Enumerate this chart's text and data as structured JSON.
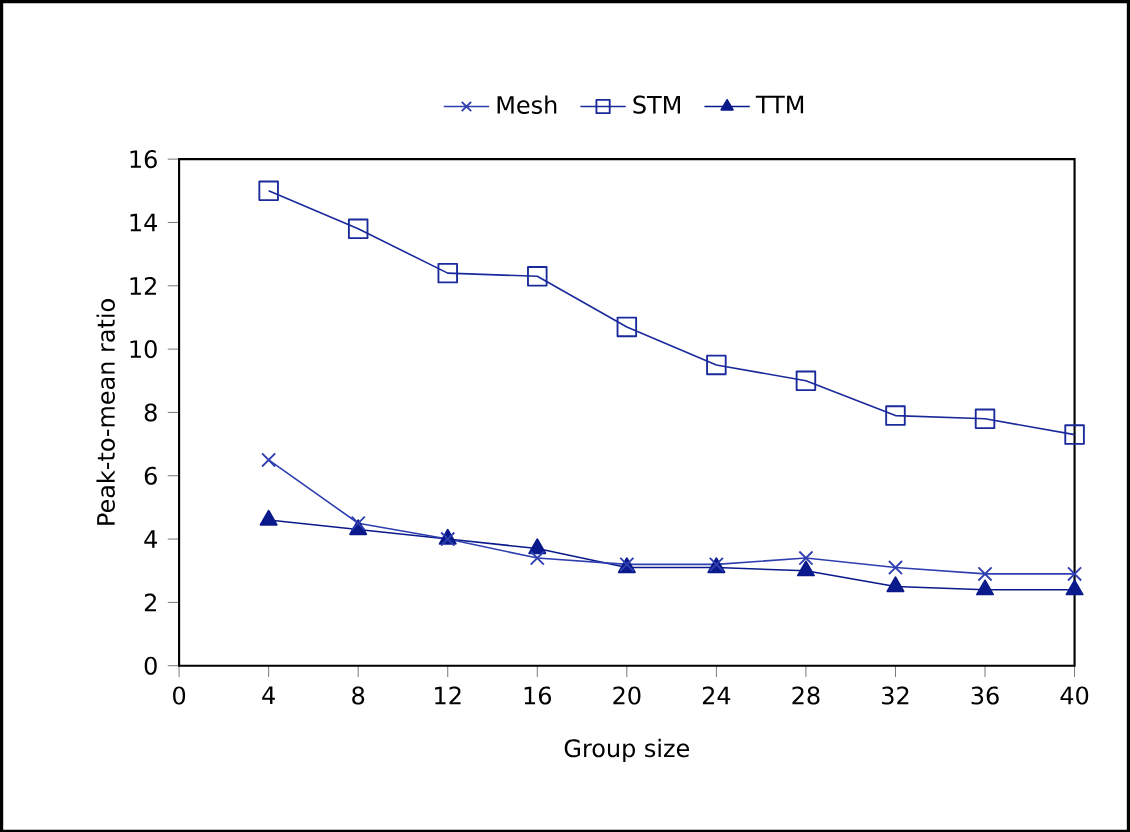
{
  "chart_data": {
    "type": "line",
    "xlabel": "Group size",
    "ylabel": "Peak-to-mean ratio",
    "x": [
      4,
      8,
      12,
      16,
      20,
      24,
      28,
      32,
      36,
      40
    ],
    "xlim": [
      0,
      40
    ],
    "xticks": [
      0,
      4,
      8,
      12,
      16,
      20,
      24,
      28,
      32,
      36,
      40
    ],
    "ylim": [
      0,
      16
    ],
    "yticks": [
      0,
      2,
      4,
      6,
      8,
      10,
      12,
      14,
      16
    ],
    "grid": false,
    "legend": "top",
    "line_style": "solid",
    "series": [
      {
        "name": "Mesh",
        "color": "#2f3fb0",
        "marker": "cross",
        "values": [
          6.5,
          4.5,
          4.0,
          3.4,
          3.2,
          3.2,
          3.4,
          3.1,
          2.9,
          2.9
        ]
      },
      {
        "name": "STM",
        "color": "#1a2a9a",
        "marker": "square",
        "values": [
          15.0,
          13.8,
          12.4,
          12.3,
          10.7,
          9.5,
          9.0,
          7.9,
          7.8,
          7.3
        ]
      },
      {
        "name": "TTM",
        "color": "#0a1a8a",
        "marker": "triangle",
        "values": [
          4.6,
          4.3,
          4.0,
          3.7,
          3.1,
          3.1,
          3.0,
          2.5,
          2.4,
          2.4
        ]
      }
    ]
  }
}
